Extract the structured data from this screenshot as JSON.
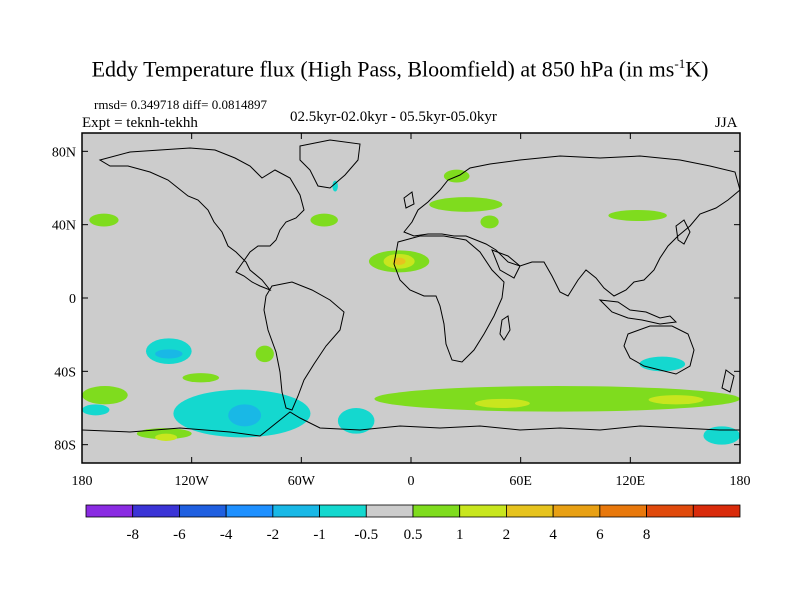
{
  "title": {
    "main": "Eddy Temperature flux (High Pass, Bloomfield) at 850 hPa (in ms",
    "sup": "-1",
    "end": "K)"
  },
  "stats": "rmsd= 0.349718 diff= 0.0814897",
  "experiment": "Expt = teknh-tekhh",
  "period": "02.5kyr-02.0kyr - 05.5kyr-05.0kyr",
  "season": "JJA",
  "axes": {
    "lat_labels": [
      "80N",
      "40N",
      "0",
      "40S",
      "80S"
    ],
    "lat_values": [
      80,
      40,
      0,
      -40,
      -80
    ],
    "lon_labels": [
      "180",
      "120W",
      "60W",
      "0",
      "60E",
      "120E",
      "180"
    ],
    "lon_values": [
      -180,
      -120,
      -60,
      0,
      60,
      120,
      180
    ],
    "lon_range": [
      -180,
      180
    ],
    "lat_range": [
      -90,
      90
    ]
  },
  "colorbar": {
    "colors": [
      "#8a2be2",
      "#3b34d6",
      "#1f5fe0",
      "#1e90ff",
      "#19b8e6",
      "#14d8cf",
      "#cccccc",
      "#7fdc1e",
      "#c8e61e",
      "#e6c31e",
      "#e8a014",
      "#e8780c",
      "#e04a0c",
      "#d92b0b"
    ],
    "labels": [
      "-8",
      "-6",
      "-4",
      "-2",
      "-1",
      "-0.5",
      "0.5",
      "1",
      "2",
      "4",
      "6",
      "8"
    ]
  },
  "palette": {
    "background": "#cccccc",
    "positive_1": "#7fdc1e",
    "positive_2": "#c8e61e",
    "positive_3": "#e6c31e",
    "negative_1": "#14d8cf",
    "negative_2": "#19b8e6"
  },
  "chart_data": {
    "type": "heatmap",
    "projection": "cylindrical-equidistant",
    "lon_range": [
      -180,
      180
    ],
    "lat_range": [
      -90,
      90
    ],
    "regions": [
      {
        "sign": "positive",
        "level": 1,
        "lon": [
          -176,
          -160
        ],
        "lat": [
          46,
          39
        ]
      },
      {
        "sign": "positive",
        "level": 1,
        "lon": [
          -55,
          -40
        ],
        "lat": [
          46,
          39
        ]
      },
      {
        "sign": "negative",
        "level": -0.5,
        "lon": [
          -43,
          -40
        ],
        "lat": [
          64,
          58
        ]
      },
      {
        "sign": "positive",
        "level": 1,
        "lon": [
          18,
          32
        ],
        "lat": [
          70,
          63
        ]
      },
      {
        "sign": "positive",
        "level": 1,
        "lon": [
          10,
          50
        ],
        "lat": [
          55,
          47
        ]
      },
      {
        "sign": "positive",
        "level": 1,
        "lon": [
          38,
          48
        ],
        "lat": [
          45,
          38
        ]
      },
      {
        "sign": "positive",
        "level": 1,
        "lon": [
          -23,
          10
        ],
        "lat": [
          26,
          14
        ]
      },
      {
        "sign": "positive",
        "level": 2,
        "lon": [
          -15,
          2
        ],
        "lat": [
          24,
          16
        ]
      },
      {
        "sign": "positive",
        "level": 4,
        "lon": [
          -10,
          -3
        ],
        "lat": [
          22,
          18
        ]
      },
      {
        "sign": "positive",
        "level": 1,
        "lon": [
          108,
          140
        ],
        "lat": [
          48,
          42
        ]
      },
      {
        "sign": "negative",
        "level": -0.5,
        "lon": [
          -145,
          -120
        ],
        "lat": [
          -22,
          -36
        ]
      },
      {
        "sign": "negative",
        "level": -1,
        "lon": [
          -140,
          -125
        ],
        "lat": [
          -28,
          -33
        ]
      },
      {
        "sign": "positive",
        "level": 1,
        "lon": [
          -85,
          -75
        ],
        "lat": [
          -26,
          -35
        ]
      },
      {
        "sign": "positive",
        "level": 1,
        "lon": [
          -125,
          -105
        ],
        "lat": [
          -41,
          -46
        ]
      },
      {
        "sign": "positive",
        "level": 1,
        "lon": [
          -180,
          -155
        ],
        "lat": [
          -48,
          -58
        ]
      },
      {
        "sign": "negative",
        "level": -0.5,
        "lon": [
          -180,
          -165
        ],
        "lat": [
          -58,
          -64
        ]
      },
      {
        "sign": "negative",
        "level": -0.5,
        "lon": [
          -130,
          -55
        ],
        "lat": [
          -50,
          -76
        ]
      },
      {
        "sign": "negative",
        "level": -1,
        "lon": [
          -100,
          -82
        ],
        "lat": [
          -58,
          -70
        ]
      },
      {
        "sign": "negative",
        "level": -0.5,
        "lon": [
          -40,
          -20
        ],
        "lat": [
          -60,
          -74
        ]
      },
      {
        "sign": "positive",
        "level": 1,
        "lon": [
          -20,
          180
        ],
        "lat": [
          -48,
          -62
        ]
      },
      {
        "sign": "positive",
        "level": 2,
        "lon": [
          35,
          65
        ],
        "lat": [
          -55,
          -60
        ]
      },
      {
        "sign": "positive",
        "level": 2,
        "lon": [
          130,
          160
        ],
        "lat": [
          -53,
          -58
        ]
      },
      {
        "sign": "negative",
        "level": -0.5,
        "lon": [
          125,
          150
        ],
        "lat": [
          -32,
          -40
        ]
      },
      {
        "sign": "positive",
        "level": 1,
        "lon": [
          -150,
          -120
        ],
        "lat": [
          -71,
          -77
        ]
      },
      {
        "sign": "positive",
        "level": 2,
        "lon": [
          -140,
          -128
        ],
        "lat": [
          -74,
          -78
        ]
      },
      {
        "sign": "negative",
        "level": -0.5,
        "lon": [
          160,
          180
        ],
        "lat": [
          -70,
          -80
        ]
      }
    ]
  }
}
